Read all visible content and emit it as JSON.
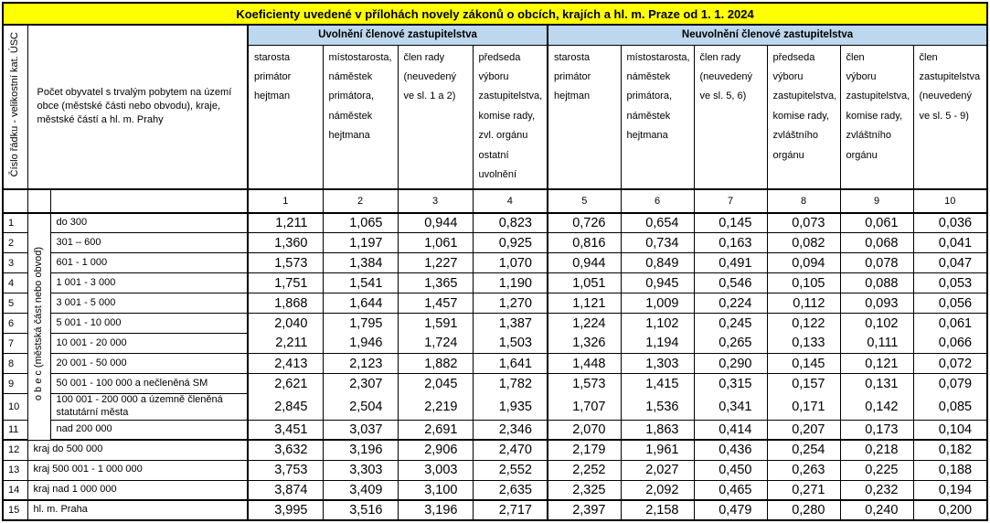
{
  "title": "Koeficienty uvedené v přílohách novely zákonů o obcích, krajích a hl. m. Praze od 1. 1. 2024",
  "colors": {
    "title_bg": "#FFFF00",
    "group_header_bg": "#BDD7EE",
    "border": "#000000"
  },
  "left_axis_label": "Číslo řádku - velikostní kat. ÚSC",
  "population_header": "Počet obyvatel s trvalým pobytem na území obce (městské části nebo obvodu), kraje, městské částí a hl. m. Prahy",
  "obec_label": "o b e c  (městská část nebo obvod)",
  "groups": [
    {
      "label": "Uvolnění členové zastupitelstva",
      "columns": [
        "starosta\nprimátor\nhejtman",
        "místostarosta,\nnáměstek\nprimátora,\nnáměstek\nhejtmana",
        "člen rady\n(neuvedený\nve sl. 1 a 2)",
        "předseda\nvýboru\nzastupitelstva,\nkomise rady,\nzvl. orgánu\nostatní uvolnění"
      ]
    },
    {
      "label": "Neuvolnění členové zastupitelstva",
      "columns": [
        "starosta\nprimátor\nhejtman",
        "místostarosta,\nnáměstek\nprimátora,\nnáměstek\nhejtmana",
        "člen rady\n(neuvedený\nve sl. 5, 6)",
        "předseda\nvýboru\nzastupitelstva,\nkomise rady,\nzvláštního\norgánu",
        "člen\nvýboru\nzastupitelstva,\nkomise rady,\nzvláštního\norgánu",
        "člen\nzastupitelstva\n(neuvedený\nve sl. 5 - 9)"
      ]
    }
  ],
  "column_numbers": [
    "1",
    "2",
    "3",
    "4",
    "5",
    "6",
    "7",
    "8",
    "9",
    "10"
  ],
  "rows": [
    {
      "num": "1",
      "label": "do 300",
      "values": [
        "1,211",
        "1,065",
        "0,944",
        "0,823",
        "0,726",
        "0,654",
        "0,145",
        "0,073",
        "0,061",
        "0,036"
      ]
    },
    {
      "num": "2",
      "label": "301 – 600",
      "values": [
        "1,360",
        "1,197",
        "1,061",
        "0,925",
        "0,816",
        "0,734",
        "0,163",
        "0,082",
        "0,068",
        "0,041"
      ]
    },
    {
      "num": "3",
      "label": "601 - 1 000",
      "values": [
        "1,573",
        "1,384",
        "1,227",
        "1,070",
        "0,944",
        "0,849",
        "0,491",
        "0,094",
        "0,078",
        "0,047"
      ]
    },
    {
      "num": "4",
      "label": "1 001 - 3 000",
      "values": [
        "1,751",
        "1,541",
        "1,365",
        "1,190",
        "1,051",
        "0,945",
        "0,546",
        "0,105",
        "0,088",
        "0,053"
      ]
    },
    {
      "num": "5",
      "label": "3 001 - 5 000",
      "values": [
        "1,868",
        "1,644",
        "1,457",
        "1,270",
        "1,121",
        "1,009",
        "0,224",
        "0,112",
        "0,093",
        "0,056"
      ]
    },
    {
      "num": "6",
      "label": "5 001 - 10 000",
      "values": [
        "2,040",
        "1,795",
        "1,591",
        "1,387",
        "1,224",
        "1,102",
        "0,245",
        "0,122",
        "0,102",
        "0,061"
      ]
    },
    {
      "num": "7",
      "label": "10 001 - 20 000",
      "values": [
        "2,211",
        "1,946",
        "1,724",
        "1,503",
        "1,326",
        "1,194",
        "0,265",
        "0,133",
        "0,111",
        "0,066"
      ]
    },
    {
      "num": "8",
      "label": "20 001 - 50 000",
      "values": [
        "2,413",
        "2,123",
        "1,882",
        "1,641",
        "1,448",
        "1,303",
        "0,290",
        "0,145",
        "0,121",
        "0,072"
      ]
    },
    {
      "num": "9",
      "label": "50 001 - 100 000 a nečleněná SM",
      "values": [
        "2,621",
        "2,307",
        "2,045",
        "1,782",
        "1,573",
        "1,415",
        "0,315",
        "0,157",
        "0,131",
        "0,079"
      ]
    },
    {
      "num": "10",
      "label": "100 001 - 200 000 a územně členěná statutární města",
      "values": [
        "2,845",
        "2,504",
        "2,219",
        "1,935",
        "1,707",
        "1,536",
        "0,341",
        "0,171",
        "0,142",
        "0,085"
      ]
    },
    {
      "num": "11",
      "label": "nad 200 000",
      "values": [
        "3,451",
        "3,037",
        "2,691",
        "2,346",
        "2,070",
        "1,863",
        "0,414",
        "0,207",
        "0,173",
        "0,104"
      ]
    },
    {
      "num": "12",
      "label": "kraj do 500 000",
      "values": [
        "3,632",
        "3,196",
        "2,906",
        "2,470",
        "2,179",
        "1,961",
        "0,436",
        "0,254",
        "0,218",
        "0,182"
      ]
    },
    {
      "num": "13",
      "label": "kraj 500 001 - 1 000 000",
      "values": [
        "3,753",
        "3,303",
        "3,003",
        "2,552",
        "2,252",
        "2,027",
        "0,450",
        "0,263",
        "0,225",
        "0,188"
      ]
    },
    {
      "num": "14",
      "label": "kraj nad 1 000 000",
      "values": [
        "3,874",
        "3,409",
        "3,100",
        "2,635",
        "2,325",
        "2,092",
        "0,465",
        "0,271",
        "0,232",
        "0,194"
      ]
    },
    {
      "num": "15",
      "label": "hl. m. Praha",
      "values": [
        "3,995",
        "3,516",
        "3,196",
        "2,717",
        "2,397",
        "2,158",
        "0,479",
        "0,280",
        "0,240",
        "0,200"
      ]
    }
  ]
}
